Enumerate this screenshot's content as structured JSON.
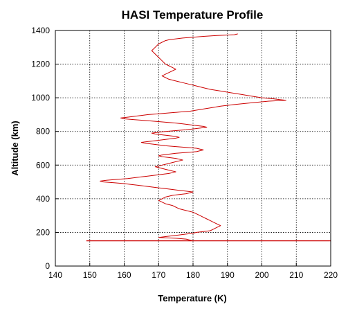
{
  "chart_data": {
    "type": "line",
    "title": "HASI Temperature Profile",
    "xlabel": "Temperature (K)",
    "ylabel": "Altitude (km)",
    "xlim": [
      140,
      220
    ],
    "ylim": [
      0,
      1400
    ],
    "xticks": [
      "140",
      "150",
      "160",
      "170",
      "180",
      "190",
      "200",
      "210",
      "220"
    ],
    "yticks": [
      "0",
      "200",
      "400",
      "600",
      "800",
      "1000",
      "1200",
      "1400"
    ],
    "grid": true,
    "legend": "none",
    "colors": {
      "series": "#cc0000",
      "grid": "#000000",
      "axis": "#000000"
    },
    "series": [
      {
        "x": [
          149,
          220
        ],
        "y": [
          150,
          150
        ]
      },
      {
        "x": [
          180,
          178,
          175,
          172,
          170,
          172,
          174,
          176,
          178,
          180,
          181,
          183,
          185,
          186,
          187,
          188,
          187,
          186,
          185,
          184,
          183,
          182,
          181,
          180,
          178,
          176,
          175,
          174,
          172,
          171,
          170,
          171,
          172,
          174,
          176,
          178,
          179,
          180,
          178,
          176,
          174,
          172,
          170,
          168,
          166,
          164,
          162,
          160,
          157,
          154,
          153,
          155,
          158,
          161,
          163,
          165,
          167,
          169,
          171,
          173,
          174,
          175,
          174,
          173,
          172,
          171,
          170,
          169,
          170,
          171,
          172,
          173,
          174,
          175,
          176,
          177,
          176,
          175,
          173,
          171,
          170,
          171,
          173,
          175,
          178,
          181,
          183,
          181,
          178,
          175,
          172,
          170,
          168,
          166,
          165,
          167,
          169,
          171,
          173,
          175,
          176,
          175,
          173,
          171,
          169,
          168,
          170,
          172,
          175,
          178,
          180,
          182,
          184,
          183,
          181,
          179,
          177,
          175,
          172,
          169,
          166,
          163,
          160,
          159,
          161,
          163,
          165,
          167,
          170,
          173,
          176,
          179,
          182,
          185,
          188,
          192,
          197,
          202,
          207,
          205,
          203,
          200,
          197,
          194,
          191,
          188,
          185,
          183,
          181,
          179,
          177,
          175,
          173,
          172,
          171,
          172,
          173,
          174,
          175,
          174,
          173,
          172,
          171,
          170,
          169,
          168,
          169,
          170,
          171,
          172,
          173,
          175,
          177,
          180,
          183,
          187,
          192,
          193
        ],
        "y": [
          150,
          160,
          165,
          168,
          170,
          175,
          180,
          185,
          190,
          195,
          200,
          205,
          210,
          220,
          230,
          240,
          250,
          260,
          270,
          280,
          290,
          300,
          310,
          320,
          330,
          340,
          350,
          360,
          370,
          380,
          390,
          400,
          410,
          420,
          425,
          430,
          435,
          440,
          445,
          450,
          455,
          460,
          465,
          470,
          475,
          480,
          485,
          490,
          495,
          500,
          505,
          510,
          515,
          520,
          525,
          530,
          535,
          540,
          545,
          550,
          555,
          560,
          565,
          570,
          575,
          580,
          585,
          590,
          595,
          600,
          605,
          610,
          615,
          620,
          625,
          630,
          635,
          640,
          645,
          650,
          655,
          660,
          665,
          670,
          675,
          680,
          690,
          700,
          705,
          710,
          715,
          720,
          725,
          730,
          735,
          740,
          745,
          750,
          755,
          760,
          765,
          770,
          775,
          780,
          785,
          790,
          795,
          800,
          805,
          810,
          815,
          820,
          825,
          830,
          835,
          840,
          845,
          850,
          855,
          860,
          865,
          870,
          875,
          880,
          885,
          890,
          895,
          900,
          905,
          910,
          915,
          920,
          930,
          940,
          950,
          960,
          970,
          980,
          985,
          990,
          995,
          1000,
          1010,
          1020,
          1030,
          1040,
          1050,
          1060,
          1070,
          1080,
          1090,
          1100,
          1110,
          1120,
          1130,
          1140,
          1150,
          1160,
          1170,
          1180,
          1190,
          1200,
          1220,
          1240,
          1260,
          1280,
          1300,
          1320,
          1330,
          1340,
          1345,
          1350,
          1355,
          1360,
          1365,
          1370,
          1375,
          1380
        ]
      }
    ]
  }
}
